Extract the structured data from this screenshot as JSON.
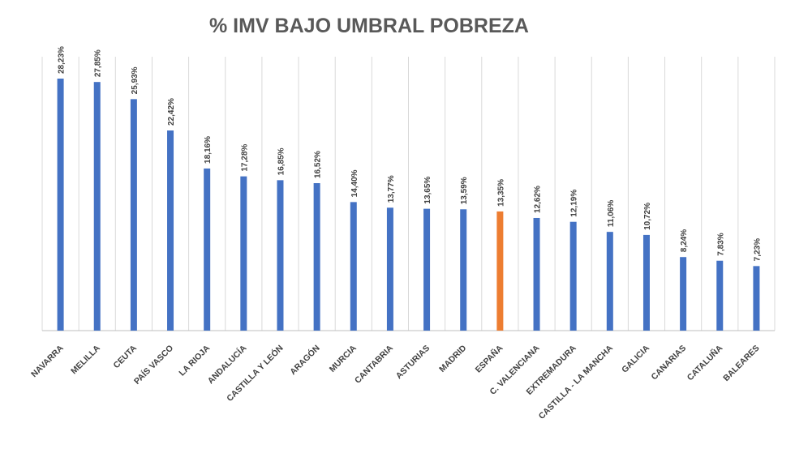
{
  "chart_data": {
    "type": "bar",
    "title": "% IMV BAJO UMBRAL POBREZA",
    "categories": [
      "NAVARRA",
      "MELILLA",
      "CEUTA",
      "PAÍS VASCO",
      "LA RIOJA",
      "ANDALUCÍA",
      "CASTILLA Y LEÓN",
      "ARAGÓN",
      "MURCIA",
      "CANTABRIA",
      "ASTURIAS",
      "MADRID",
      "ESPAÑA",
      "C. VALENCIANA",
      "EXTREMADURA",
      "CASTILLA - LA MANCHA",
      "GALICIA",
      "CANARIAS",
      "CATALUÑA",
      "BALEARES"
    ],
    "values": [
      28.23,
      27.85,
      25.93,
      22.42,
      18.16,
      17.28,
      16.85,
      16.52,
      14.4,
      13.77,
      13.65,
      13.59,
      13.35,
      12.62,
      12.19,
      11.06,
      10.72,
      8.24,
      7.83,
      7.23
    ],
    "value_labels": [
      "28,23%",
      "27,85%",
      "25,93%",
      "22,42%",
      "18,16%",
      "17,28%",
      "16,85%",
      "16,52%",
      "14,40%",
      "13,77%",
      "13,65%",
      "13,59%",
      "13,35%",
      "12,62%",
      "12,19%",
      "11,06%",
      "10,72%",
      "8,24%",
      "7,83%",
      "7,23%"
    ],
    "colors": [
      "#4472c4",
      "#4472c4",
      "#4472c4",
      "#4472c4",
      "#4472c4",
      "#4472c4",
      "#4472c4",
      "#4472c4",
      "#4472c4",
      "#4472c4",
      "#4472c4",
      "#4472c4",
      "#ed7d31",
      "#4472c4",
      "#4472c4",
      "#4472c4",
      "#4472c4",
      "#4472c4",
      "#4472c4",
      "#4472c4"
    ],
    "grid": true
  }
}
